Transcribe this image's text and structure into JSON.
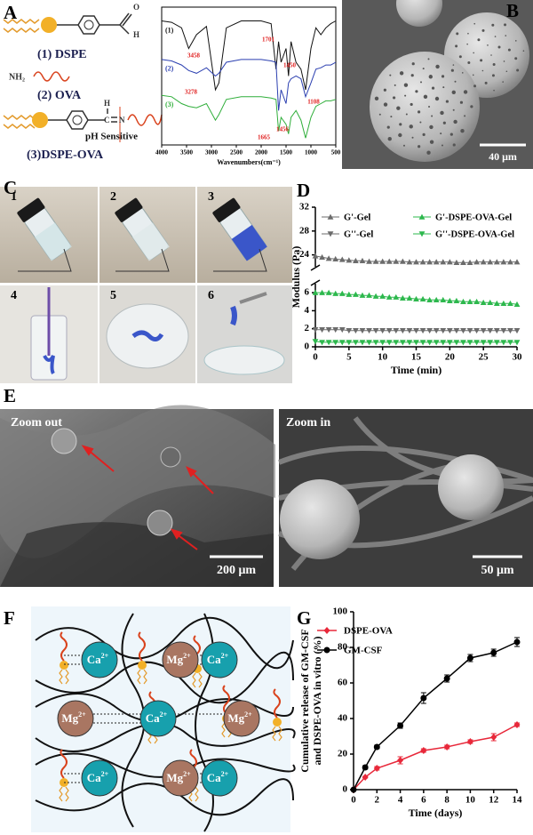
{
  "panel_labels": [
    "A",
    "B",
    "C",
    "D",
    "E",
    "F",
    "G"
  ],
  "panel_a": {
    "molecules": [
      "(1) DSPE",
      "(2) OVA",
      "(3)DSPE-OVA"
    ],
    "aldehyde": [
      "O",
      "H"
    ],
    "amine": "NH₂",
    "linkage": [
      "H",
      "C",
      "N"
    ],
    "ph_label": "pH Sensitive"
  },
  "panel_b": {
    "scale_bar": "40 μm"
  },
  "panel_c": {
    "labels": [
      "1",
      "2",
      "3",
      "4",
      "5",
      "6"
    ]
  },
  "panel_e": {
    "images": [
      {
        "title": "Zoom out",
        "scale_bar": "200 μm"
      },
      {
        "title": "Zoom in",
        "scale_bar": "50 μm"
      }
    ]
  },
  "panel_f": {
    "ions": [
      {
        "symbol": "Ca",
        "charge": "2+"
      },
      {
        "symbol": "Mg",
        "charge": "2+"
      },
      {
        "symbol": "Ca",
        "charge": "2+"
      },
      {
        "symbol": "Mg",
        "charge": "2+"
      },
      {
        "symbol": "Ca",
        "charge": "2+"
      },
      {
        "symbol": "Mg",
        "charge": "2+"
      },
      {
        "symbol": "Ca",
        "charge": "2+"
      },
      {
        "symbol": "Mg",
        "charge": "2+"
      },
      {
        "symbol": "Ca",
        "charge": "2+"
      }
    ]
  },
  "chart_data": [
    {
      "type": "line",
      "xlabel": "Wavenumbers(cm⁻¹)",
      "x": [
        4000,
        3800,
        3600,
        3458,
        3300,
        3100,
        2920,
        2850,
        2700,
        2400,
        2200,
        2000,
        1800,
        1701,
        1650,
        1600,
        1500,
        1450,
        1400,
        1300,
        1200,
        1108,
        1000,
        900,
        800,
        700,
        600,
        500
      ],
      "xlim": [
        4000,
        500
      ],
      "xticks": [
        4000,
        3500,
        3000,
        2500,
        2000,
        1500,
        1000,
        500
      ],
      "ylim": [
        0,
        100
      ],
      "series": [
        {
          "name": "(1)",
          "color": "#111111",
          "values": [
            90,
            89,
            85,
            70,
            80,
            86,
            40,
            45,
            85,
            90,
            90,
            90,
            88,
            55,
            75,
            60,
            70,
            50,
            75,
            60,
            55,
            40,
            70,
            85,
            80,
            85,
            88,
            90
          ]
        },
        {
          "name": "(2)",
          "color": "#2b3fb0",
          "values": [
            62,
            61,
            58,
            54,
            52,
            56,
            50,
            52,
            60,
            62,
            62,
            62,
            61,
            60,
            25,
            40,
            30,
            45,
            48,
            50,
            48,
            35,
            45,
            55,
            56,
            58,
            58,
            60
          ]
        },
        {
          "name": "(3)",
          "color": "#2fae3a",
          "values": [
            36,
            35,
            30,
            28,
            27,
            30,
            18,
            22,
            33,
            35,
            35,
            35,
            34,
            33,
            10,
            20,
            15,
            8,
            20,
            25,
            18,
            5,
            20,
            28,
            30,
            32,
            32,
            33
          ]
        }
      ],
      "annotations": [
        "3458",
        "1701",
        "1450",
        "3278",
        "1108",
        "1665",
        "1456"
      ],
      "annotation_color": "#e02020"
    },
    {
      "type": "line",
      "xlabel": "Time (min)",
      "ylabel": "Modulus (Pa)",
      "x": [
        0,
        1,
        2,
        3,
        4,
        5,
        6,
        7,
        8,
        9,
        10,
        11,
        12,
        13,
        14,
        15,
        16,
        17,
        18,
        19,
        20,
        21,
        22,
        23,
        24,
        25,
        26,
        27,
        28,
        29,
        30
      ],
      "xlim": [
        0,
        30
      ],
      "xticks": [
        0,
        5,
        10,
        15,
        20,
        25,
        30
      ],
      "ylim": [
        0,
        32
      ],
      "ybreak": [
        7,
        22
      ],
      "yticks": [
        0,
        2,
        4,
        6,
        24,
        28,
        32
      ],
      "series": [
        {
          "name": "G'-Gel",
          "color": "#6b6b6b",
          "marker": "triangle-up",
          "values": [
            23.8,
            23.6,
            23.4,
            23.3,
            23.2,
            23.1,
            23.0,
            23.0,
            22.9,
            22.9,
            22.9,
            22.9,
            22.9,
            22.9,
            22.8,
            22.8,
            22.8,
            22.8,
            22.8,
            22.8,
            22.8,
            22.7,
            22.7,
            22.7,
            22.8,
            22.8,
            22.8,
            22.8,
            22.8,
            22.8,
            22.8
          ]
        },
        {
          "name": "G'-DSPE-OVA-Gel",
          "color": "#2db84d",
          "marker": "triangle-up",
          "values": [
            6.0,
            6.0,
            6.0,
            5.9,
            5.9,
            5.8,
            5.8,
            5.7,
            5.7,
            5.6,
            5.6,
            5.5,
            5.5,
            5.4,
            5.4,
            5.3,
            5.3,
            5.2,
            5.2,
            5.2,
            5.1,
            5.1,
            5.0,
            5.0,
            5.0,
            4.9,
            4.9,
            4.8,
            4.8,
            4.8,
            4.7
          ]
        },
        {
          "name": "G''-Gel",
          "color": "#6b6b6b",
          "marker": "triangle-down",
          "values": [
            1.9,
            1.9,
            1.9,
            1.9,
            1.9,
            1.8,
            1.8,
            1.8,
            1.8,
            1.8,
            1.8,
            1.8,
            1.8,
            1.8,
            1.8,
            1.8,
            1.8,
            1.8,
            1.8,
            1.8,
            1.8,
            1.8,
            1.8,
            1.8,
            1.8,
            1.8,
            1.8,
            1.8,
            1.8,
            1.8,
            1.8
          ]
        },
        {
          "name": "G''-DSPE-OVA-Gel",
          "color": "#2db84d",
          "marker": "triangle-down",
          "values": [
            0.6,
            0.5,
            0.5,
            0.5,
            0.5,
            0.5,
            0.5,
            0.5,
            0.5,
            0.5,
            0.5,
            0.5,
            0.5,
            0.5,
            0.5,
            0.5,
            0.5,
            0.5,
            0.5,
            0.5,
            0.5,
            0.5,
            0.5,
            0.5,
            0.5,
            0.5,
            0.5,
            0.5,
            0.5,
            0.5,
            0.5
          ]
        }
      ],
      "legend": "top"
    },
    {
      "type": "line",
      "xlabel": "Time (days)",
      "ylabel": [
        "Cumulative release of GM-CSF",
        "and DSPE-OVA in vitro (%)"
      ],
      "x": [
        0,
        1,
        2,
        4,
        6,
        8,
        10,
        12,
        14
      ],
      "xlim": [
        0,
        14
      ],
      "xticks": [
        0,
        2,
        4,
        6,
        8,
        10,
        12,
        14
      ],
      "ylim": [
        0,
        100
      ],
      "yticks": [
        0,
        20,
        40,
        60,
        80,
        100
      ],
      "series": [
        {
          "name": "DSPE-OVA",
          "color": "#e8283a",
          "marker": "diamond",
          "values": [
            0,
            7,
            12,
            16.5,
            22,
            24,
            27,
            29.5,
            36.5
          ],
          "errors": [
            0,
            0.5,
            1,
            2,
            1,
            1,
            1,
            2,
            1
          ]
        },
        {
          "name": "GM-CSF",
          "color": "#000000",
          "marker": "circle",
          "values": [
            0,
            12.5,
            24,
            36,
            51.5,
            62.5,
            74,
            77,
            83
          ],
          "errors": [
            0,
            1,
            1,
            1.5,
            3,
            2,
            2,
            2,
            2.5
          ]
        }
      ],
      "legend": "top-left"
    }
  ]
}
